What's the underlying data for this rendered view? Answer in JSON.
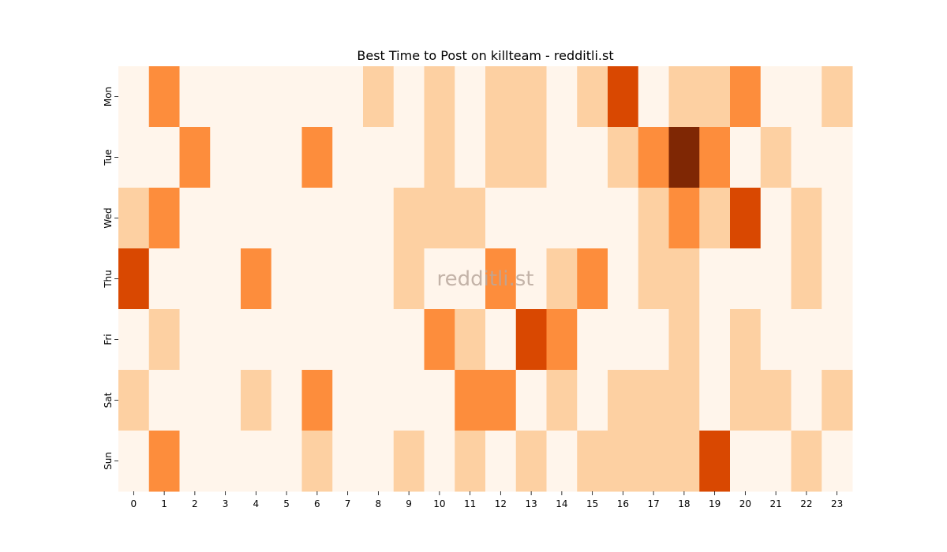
{
  "chart_data": {
    "type": "heatmap",
    "title": "Best Time to Post on killteam - redditli.st",
    "watermark": "redditli.st",
    "x_categories": [
      "0",
      "1",
      "2",
      "3",
      "4",
      "5",
      "6",
      "7",
      "8",
      "9",
      "10",
      "11",
      "12",
      "13",
      "14",
      "15",
      "16",
      "17",
      "18",
      "19",
      "20",
      "21",
      "22",
      "23"
    ],
    "y_categories": [
      "Mon",
      "Tue",
      "Wed",
      "Thu",
      "Fri",
      "Sat",
      "Sun"
    ],
    "values": [
      [
        0,
        2,
        0,
        0,
        0,
        0,
        0,
        0,
        1,
        0,
        1,
        0,
        1,
        1,
        0,
        1,
        3,
        0,
        1,
        1,
        2,
        0,
        0,
        1
      ],
      [
        0,
        0,
        2,
        0,
        0,
        0,
        2,
        0,
        0,
        0,
        1,
        0,
        1,
        1,
        0,
        0,
        1,
        2,
        4,
        2,
        0,
        1,
        0,
        0
      ],
      [
        1,
        2,
        0,
        0,
        0,
        0,
        0,
        0,
        0,
        1,
        1,
        1,
        0,
        0,
        0,
        0,
        0,
        1,
        2,
        1,
        3,
        0,
        1,
        0
      ],
      [
        3,
        0,
        0,
        0,
        2,
        0,
        0,
        0,
        0,
        1,
        0,
        0,
        2,
        0,
        1,
        2,
        0,
        1,
        1,
        0,
        0,
        0,
        1,
        0
      ],
      [
        0,
        1,
        0,
        0,
        0,
        0,
        0,
        0,
        0,
        0,
        2,
        1,
        0,
        3,
        2,
        0,
        0,
        0,
        1,
        0,
        1,
        0,
        0,
        0
      ],
      [
        1,
        0,
        0,
        0,
        1,
        0,
        2,
        0,
        0,
        0,
        0,
        2,
        2,
        0,
        1,
        0,
        1,
        1,
        1,
        0,
        1,
        1,
        0,
        1
      ],
      [
        0,
        2,
        0,
        0,
        0,
        0,
        1,
        0,
        0,
        1,
        0,
        1,
        0,
        1,
        0,
        1,
        1,
        1,
        1,
        3,
        0,
        0,
        1,
        0
      ]
    ],
    "value_range": [
      0,
      4
    ],
    "colormap": "Oranges",
    "level_colors": [
      "#fff5eb",
      "#fdd0a2",
      "#fd8d3c",
      "#d94801",
      "#7f2704"
    ],
    "grid": false,
    "legend": "none"
  }
}
